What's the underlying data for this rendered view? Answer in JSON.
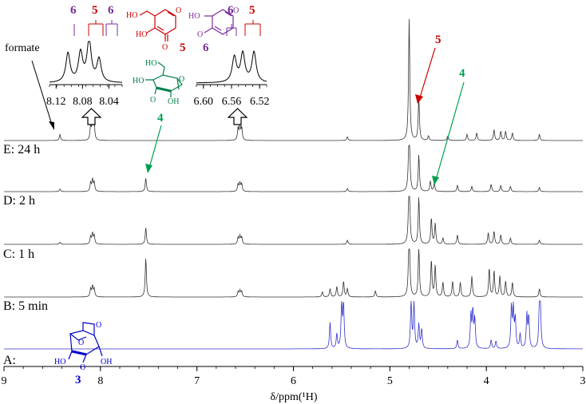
{
  "chart_data": {
    "type": "line",
    "xlabel": "δ/ppm(¹H)",
    "xlim": [
      9,
      3
    ],
    "x_reversed": true,
    "ticks": [
      "9",
      "8",
      "7",
      "6",
      "5",
      "4",
      "3"
    ],
    "tick_values": [
      9,
      8,
      7,
      6,
      5,
      4,
      3
    ],
    "series": [
      {
        "name": "E: 24 h",
        "color": "#333333",
        "peaks": [
          [
            8.42,
            0.08
          ],
          [
            8.102,
            0.18
          ],
          [
            8.083,
            0.26
          ],
          [
            8.065,
            0.2
          ],
          [
            6.573,
            0.16
          ],
          [
            6.554,
            0.18
          ],
          [
            6.536,
            0.16
          ],
          [
            5.44,
            0.05
          ],
          [
            4.8,
            1.6
          ],
          [
            4.7,
            0.55
          ],
          [
            4.6,
            0.06
          ],
          [
            4.4,
            0.06
          ],
          [
            4.2,
            0.08
          ],
          [
            4.1,
            0.1
          ],
          [
            3.92,
            0.14
          ],
          [
            3.85,
            0.12
          ],
          [
            3.8,
            0.12
          ],
          [
            3.73,
            0.1
          ],
          [
            3.45,
            0.08
          ]
        ]
      },
      {
        "name": "D: 2 h",
        "color": "#333333",
        "peaks": [
          [
            8.42,
            0.05
          ],
          [
            8.102,
            0.16
          ],
          [
            8.083,
            0.22
          ],
          [
            8.065,
            0.17
          ],
          [
            7.53,
            0.26
          ],
          [
            6.573,
            0.14
          ],
          [
            6.554,
            0.16
          ],
          [
            6.536,
            0.14
          ],
          [
            5.44,
            0.06
          ],
          [
            4.8,
            1.6
          ],
          [
            4.7,
            0.7
          ],
          [
            4.58,
            0.2
          ],
          [
            4.54,
            0.16
          ],
          [
            4.3,
            0.12
          ],
          [
            4.15,
            0.1
          ],
          [
            3.95,
            0.14
          ],
          [
            3.85,
            0.12
          ],
          [
            3.75,
            0.1
          ],
          [
            3.45,
            0.08
          ]
        ]
      },
      {
        "name": "C: 1 h",
        "color": "#333333",
        "peaks": [
          [
            8.42,
            0.04
          ],
          [
            8.102,
            0.14
          ],
          [
            8.083,
            0.2
          ],
          [
            8.065,
            0.16
          ],
          [
            7.53,
            0.32
          ],
          [
            6.573,
            0.13
          ],
          [
            6.554,
            0.15
          ],
          [
            6.536,
            0.13
          ],
          [
            5.44,
            0.08
          ],
          [
            4.8,
            1.6
          ],
          [
            4.7,
            0.9
          ],
          [
            4.57,
            0.5
          ],
          [
            4.53,
            0.4
          ],
          [
            4.45,
            0.12
          ],
          [
            4.3,
            0.18
          ],
          [
            3.98,
            0.22
          ],
          [
            3.92,
            0.25
          ],
          [
            3.85,
            0.18
          ],
          [
            3.75,
            0.12
          ],
          [
            3.45,
            0.08
          ]
        ]
      },
      {
        "name": "B: 5 min",
        "color": "#333333",
        "peaks": [
          [
            8.102,
            0.15
          ],
          [
            8.083,
            0.2
          ],
          [
            8.065,
            0.15
          ],
          [
            7.53,
            0.75
          ],
          [
            6.573,
            0.1
          ],
          [
            6.554,
            0.12
          ],
          [
            6.536,
            0.1
          ],
          [
            5.7,
            0.1
          ],
          [
            5.62,
            0.16
          ],
          [
            5.55,
            0.2
          ],
          [
            5.48,
            0.3
          ],
          [
            5.44,
            0.16
          ],
          [
            5.15,
            0.12
          ],
          [
            4.8,
            1.6
          ],
          [
            4.7,
            0.95
          ],
          [
            4.57,
            0.7
          ],
          [
            4.53,
            0.6
          ],
          [
            4.45,
            0.28
          ],
          [
            4.35,
            0.3
          ],
          [
            4.27,
            0.28
          ],
          [
            4.15,
            0.4
          ],
          [
            3.97,
            0.55
          ],
          [
            3.92,
            0.5
          ],
          [
            3.86,
            0.4
          ],
          [
            3.8,
            0.3
          ],
          [
            3.73,
            0.28
          ],
          [
            3.45,
            0.16
          ]
        ]
      },
      {
        "name": "A:",
        "color": "#3333cc",
        "peaks": [
          [
            5.62,
            0.55
          ],
          [
            5.55,
            0.3
          ],
          [
            5.5,
            0.95
          ],
          [
            5.48,
            0.9
          ],
          [
            4.78,
            1.0
          ],
          [
            4.75,
            0.95
          ],
          [
            4.7,
            0.5
          ],
          [
            4.67,
            0.4
          ],
          [
            4.3,
            0.18
          ],
          [
            4.16,
            0.7
          ],
          [
            4.14,
            0.75
          ],
          [
            4.12,
            0.6
          ],
          [
            3.95,
            0.18
          ],
          [
            3.9,
            0.16
          ],
          [
            3.74,
            0.85
          ],
          [
            3.72,
            0.8
          ],
          [
            3.7,
            0.6
          ],
          [
            3.65,
            0.3
          ],
          [
            3.58,
            0.7
          ],
          [
            3.56,
            0.65
          ],
          [
            3.45,
            0.85
          ],
          [
            3.44,
            0.8
          ]
        ]
      }
    ],
    "inset_left": {
      "xlim": [
        8.13,
        8.02
      ],
      "ticks": [
        "8.12",
        "8.08",
        "8.04"
      ],
      "tick_values": [
        8.12,
        8.08,
        8.04
      ],
      "peaks": [
        [
          8.102,
          0.7
        ],
        [
          8.083,
          0.7
        ],
        [
          8.07,
          1.0
        ],
        [
          8.055,
          0.55
        ]
      ]
    },
    "inset_right": {
      "xlim": [
        6.61,
        6.51
      ],
      "ticks": [
        "6.60",
        "6.56",
        "6.52"
      ],
      "tick_values": [
        6.6,
        6.56,
        6.52
      ],
      "peaks": [
        [
          6.556,
          0.75
        ],
        [
          6.544,
          0.85
        ],
        [
          6.528,
          0.9
        ]
      ]
    },
    "annotations": {
      "formate": "formate",
      "label_5": "5",
      "label_6": "6",
      "label_4": "4",
      "label_3": "3",
      "color_5": "#cc0000",
      "color_6": "#7a2c9b",
      "color_4": "#00a050",
      "color_3": "#0000cc"
    }
  }
}
